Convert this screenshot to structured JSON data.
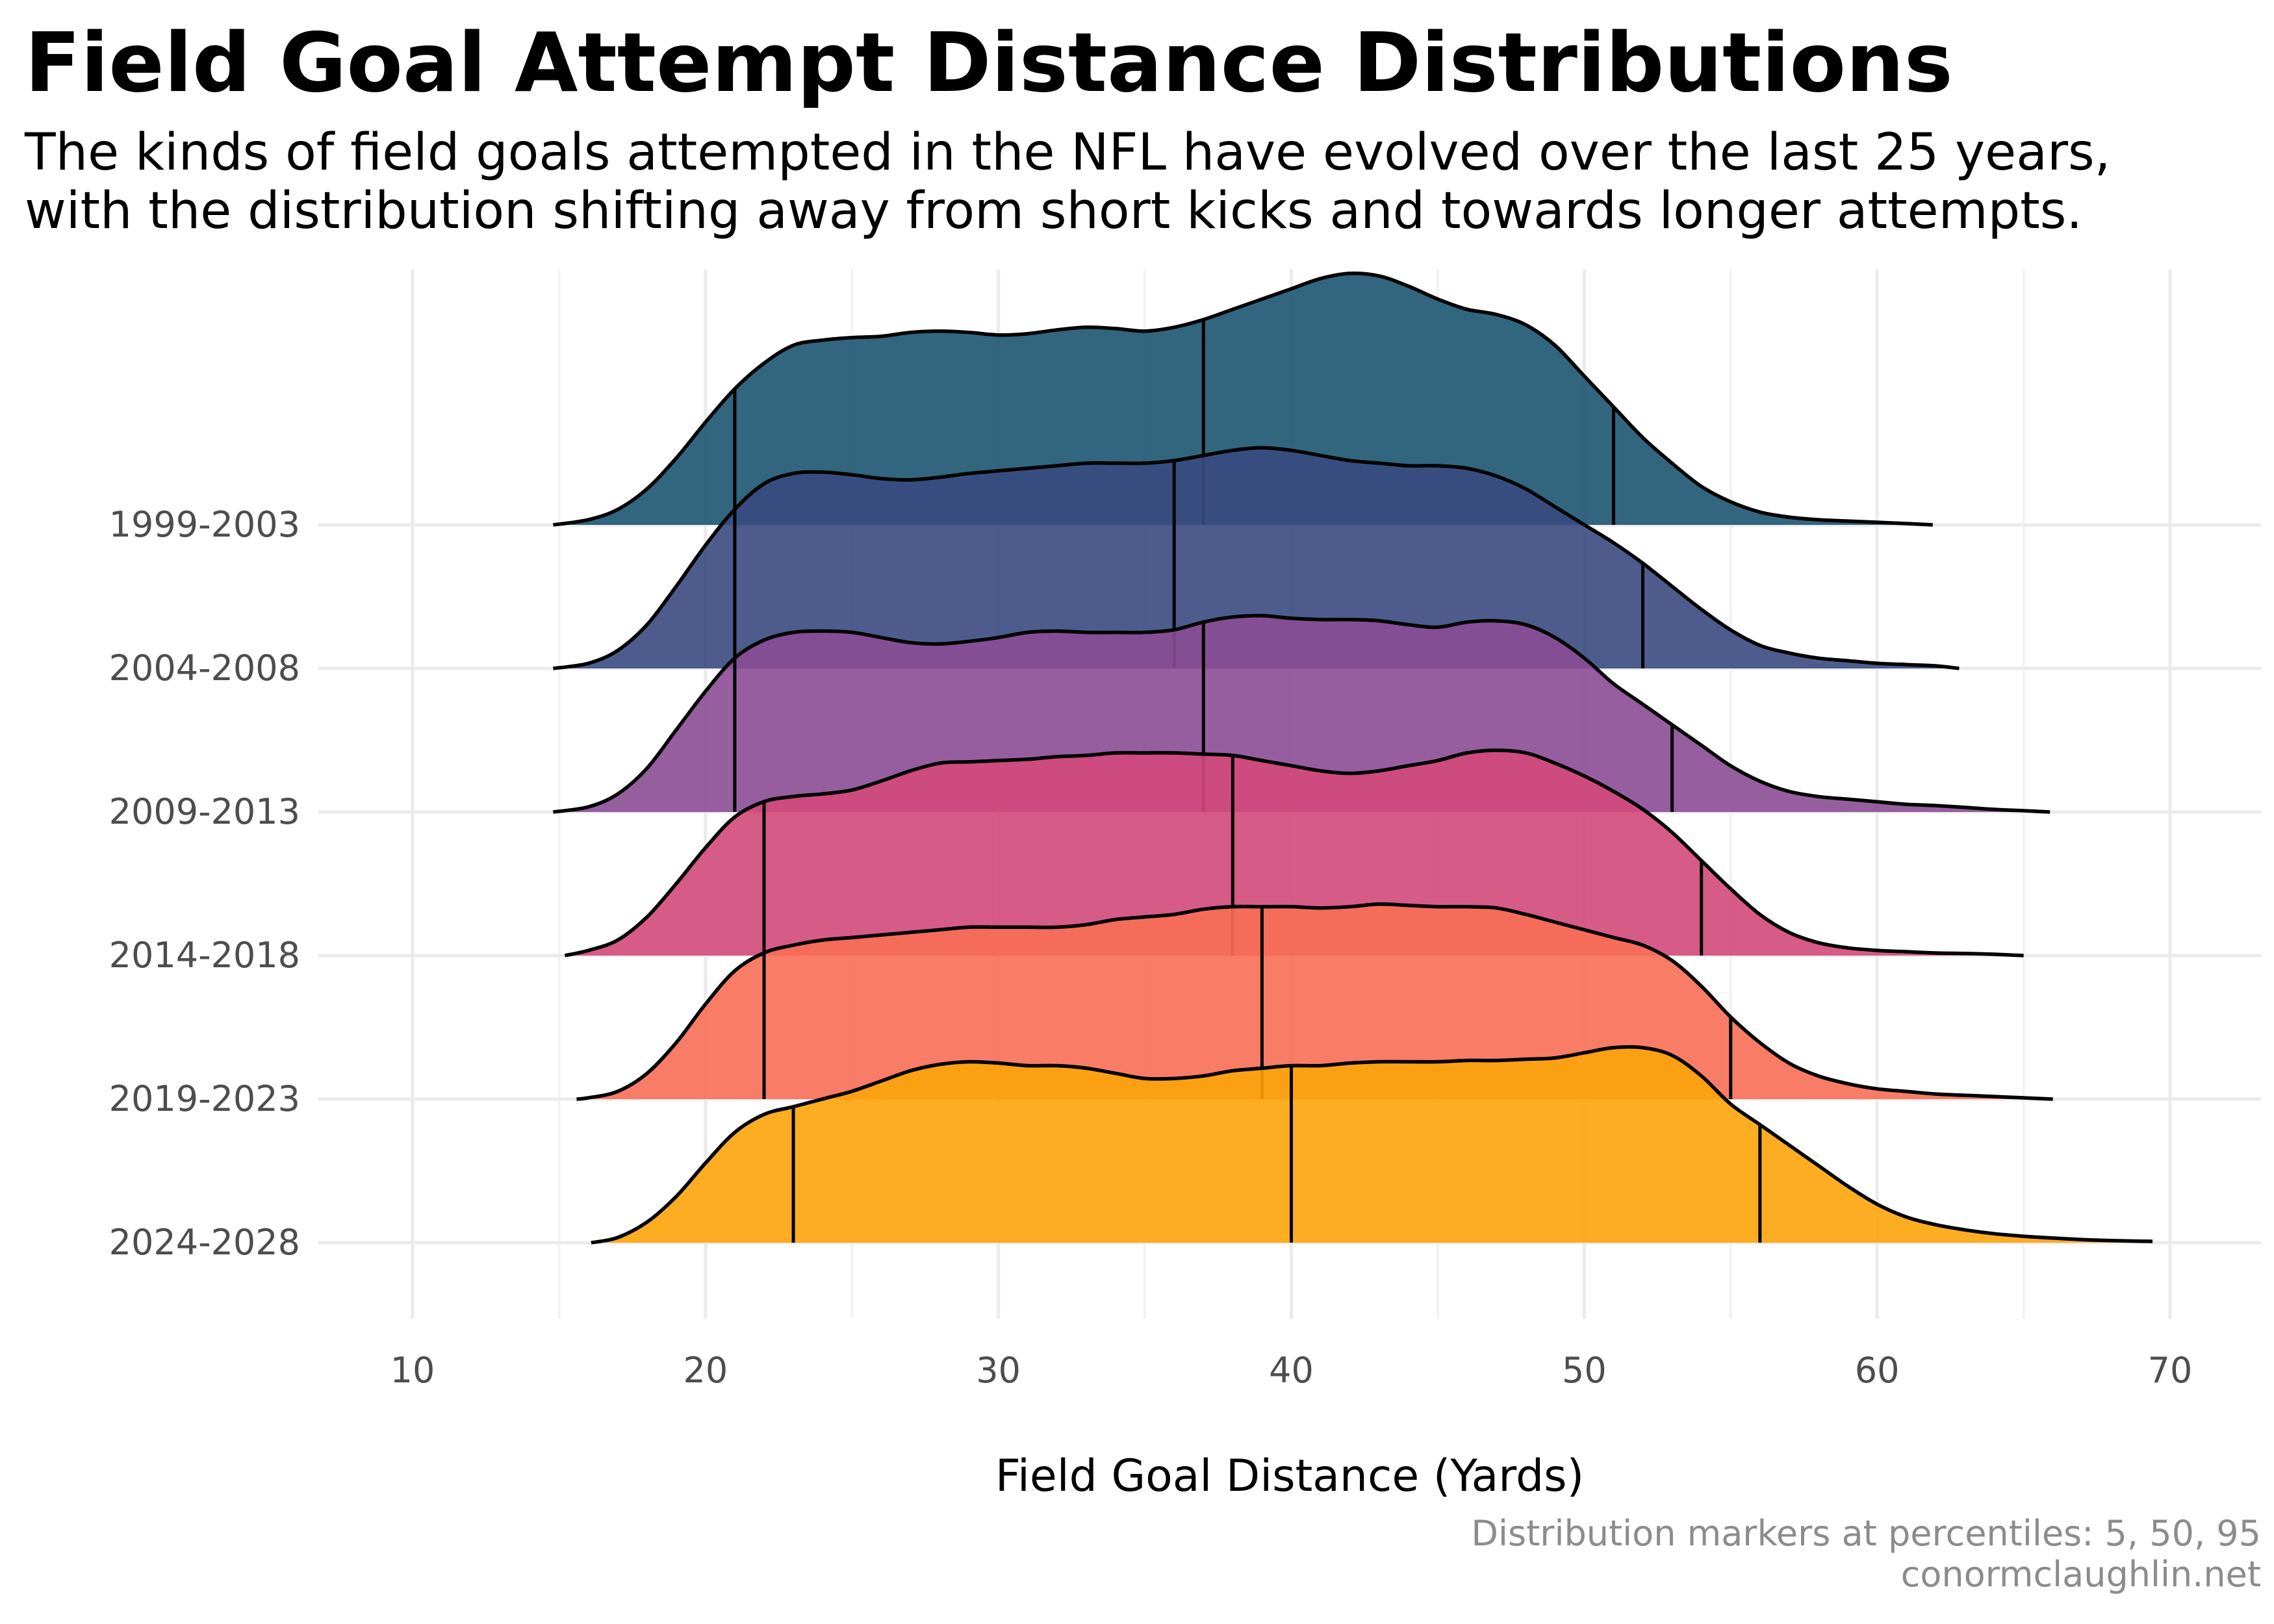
{
  "header": {
    "title": "Field Goal Attempt Distance Distributions",
    "subtitle_line1": "The kinds of field goals attempted in the NFL have evolved over the last 25 years,",
    "subtitle_line2": "with the distribution shifting away from short kicks and towards longer attempts."
  },
  "caption": {
    "line1": "Distribution markers at percentiles: 5, 50, 95",
    "line2": "conormclaughlin.net"
  },
  "chart_data": {
    "type": "ridgeline",
    "title": "Field Goal Attempt Distance Distributions",
    "xlabel": "Field Goal Distance (Yards)",
    "ylabel": "",
    "xlim": [
      8,
      74
    ],
    "x_ticks": [
      10,
      20,
      30,
      40,
      50,
      60,
      70
    ],
    "x_minor_ticks": [
      15,
      25,
      35,
      45,
      55,
      65
    ],
    "grid": true,
    "legend": "none",
    "quantile_percentiles": [
      5,
      50,
      95
    ],
    "series": [
      {
        "name": "1999-2003",
        "color": "#1b5570",
        "quantiles": [
          21,
          37,
          51
        ],
        "density": [
          [
            14.8,
            0
          ],
          [
            16,
            0.02
          ],
          [
            17,
            0.06
          ],
          [
            18,
            0.14
          ],
          [
            19,
            0.26
          ],
          [
            20,
            0.4
          ],
          [
            21,
            0.53
          ],
          [
            22,
            0.63
          ],
          [
            23,
            0.7
          ],
          [
            24,
            0.72
          ],
          [
            25,
            0.73
          ],
          [
            26,
            0.735
          ],
          [
            27,
            0.75
          ],
          [
            28,
            0.755
          ],
          [
            29,
            0.75
          ],
          [
            30,
            0.74
          ],
          [
            31,
            0.745
          ],
          [
            32,
            0.76
          ],
          [
            33,
            0.77
          ],
          [
            34,
            0.765
          ],
          [
            35,
            0.755
          ],
          [
            36,
            0.77
          ],
          [
            37,
            0.8
          ],
          [
            38,
            0.84
          ],
          [
            39,
            0.88
          ],
          [
            40,
            0.92
          ],
          [
            41,
            0.96
          ],
          [
            42,
            0.98
          ],
          [
            43,
            0.97
          ],
          [
            44,
            0.93
          ],
          [
            45,
            0.88
          ],
          [
            46,
            0.84
          ],
          [
            47,
            0.82
          ],
          [
            48,
            0.78
          ],
          [
            49,
            0.7
          ],
          [
            50,
            0.58
          ],
          [
            51,
            0.46
          ],
          [
            52,
            0.34
          ],
          [
            53,
            0.24
          ],
          [
            54,
            0.15
          ],
          [
            55,
            0.09
          ],
          [
            56,
            0.05
          ],
          [
            57,
            0.03
          ],
          [
            58,
            0.02
          ],
          [
            59,
            0.015
          ],
          [
            60,
            0.01
          ],
          [
            61,
            0.005
          ],
          [
            61.9,
            0
          ]
        ]
      },
      {
        "name": "2004-2008",
        "color": "#3a4a7f",
        "quantiles": [
          21,
          36,
          52
        ],
        "density": [
          [
            14.8,
            0
          ],
          [
            16,
            0.02
          ],
          [
            17,
            0.07
          ],
          [
            18,
            0.17
          ],
          [
            19,
            0.32
          ],
          [
            20,
            0.48
          ],
          [
            21,
            0.62
          ],
          [
            22,
            0.72
          ],
          [
            23,
            0.76
          ],
          [
            24,
            0.765
          ],
          [
            25,
            0.755
          ],
          [
            26,
            0.74
          ],
          [
            27,
            0.735
          ],
          [
            28,
            0.745
          ],
          [
            29,
            0.76
          ],
          [
            30,
            0.77
          ],
          [
            31,
            0.78
          ],
          [
            32,
            0.79
          ],
          [
            33,
            0.8
          ],
          [
            34,
            0.8
          ],
          [
            35,
            0.8
          ],
          [
            36,
            0.81
          ],
          [
            37,
            0.83
          ],
          [
            38,
            0.85
          ],
          [
            39,
            0.86
          ],
          [
            40,
            0.85
          ],
          [
            41,
            0.83
          ],
          [
            42,
            0.81
          ],
          [
            43,
            0.8
          ],
          [
            44,
            0.79
          ],
          [
            45,
            0.79
          ],
          [
            46,
            0.78
          ],
          [
            47,
            0.75
          ],
          [
            48,
            0.7
          ],
          [
            49,
            0.63
          ],
          [
            50,
            0.56
          ],
          [
            51,
            0.49
          ],
          [
            52,
            0.41
          ],
          [
            53,
            0.32
          ],
          [
            54,
            0.23
          ],
          [
            55,
            0.15
          ],
          [
            56,
            0.09
          ],
          [
            57,
            0.06
          ],
          [
            58,
            0.04
          ],
          [
            59,
            0.03
          ],
          [
            60,
            0.02
          ],
          [
            61,
            0.015
          ],
          [
            62,
            0.01
          ],
          [
            62.8,
            0
          ]
        ]
      },
      {
        "name": "2009-2013",
        "color": "#8b4d95",
        "quantiles": [
          21,
          37,
          53
        ],
        "density": [
          [
            14.8,
            0
          ],
          [
            16,
            0.02
          ],
          [
            17,
            0.07
          ],
          [
            18,
            0.17
          ],
          [
            19,
            0.32
          ],
          [
            20,
            0.47
          ],
          [
            21,
            0.6
          ],
          [
            22,
            0.67
          ],
          [
            23,
            0.7
          ],
          [
            24,
            0.705
          ],
          [
            25,
            0.7
          ],
          [
            26,
            0.68
          ],
          [
            27,
            0.66
          ],
          [
            28,
            0.655
          ],
          [
            29,
            0.665
          ],
          [
            30,
            0.68
          ],
          [
            31,
            0.7
          ],
          [
            32,
            0.705
          ],
          [
            33,
            0.7
          ],
          [
            34,
            0.7
          ],
          [
            35,
            0.7
          ],
          [
            36,
            0.71
          ],
          [
            37,
            0.74
          ],
          [
            38,
            0.76
          ],
          [
            39,
            0.765
          ],
          [
            40,
            0.755
          ],
          [
            41,
            0.75
          ],
          [
            42,
            0.75
          ],
          [
            43,
            0.745
          ],
          [
            44,
            0.73
          ],
          [
            45,
            0.72
          ],
          [
            46,
            0.74
          ],
          [
            47,
            0.745
          ],
          [
            48,
            0.73
          ],
          [
            49,
            0.68
          ],
          [
            50,
            0.6
          ],
          [
            51,
            0.5
          ],
          [
            52,
            0.42
          ],
          [
            53,
            0.34
          ],
          [
            54,
            0.26
          ],
          [
            55,
            0.18
          ],
          [
            56,
            0.12
          ],
          [
            57,
            0.08
          ],
          [
            58,
            0.06
          ],
          [
            59,
            0.05
          ],
          [
            60,
            0.04
          ],
          [
            61,
            0.03
          ],
          [
            62,
            0.025
          ],
          [
            63,
            0.018
          ],
          [
            64,
            0.01
          ],
          [
            65,
            0.005
          ],
          [
            65.9,
            0
          ]
        ]
      },
      {
        "name": "2014-2018",
        "color": "#d3497a",
        "quantiles": [
          22,
          38,
          54
        ],
        "density": [
          [
            15.2,
            0
          ],
          [
            16,
            0.02
          ],
          [
            17,
            0.06
          ],
          [
            18,
            0.15
          ],
          [
            19,
            0.28
          ],
          [
            20,
            0.42
          ],
          [
            21,
            0.54
          ],
          [
            22,
            0.6
          ],
          [
            23,
            0.62
          ],
          [
            24,
            0.63
          ],
          [
            25,
            0.645
          ],
          [
            26,
            0.68
          ],
          [
            27,
            0.72
          ],
          [
            28,
            0.75
          ],
          [
            29,
            0.755
          ],
          [
            30,
            0.76
          ],
          [
            31,
            0.765
          ],
          [
            32,
            0.775
          ],
          [
            33,
            0.78
          ],
          [
            34,
            0.79
          ],
          [
            35,
            0.79
          ],
          [
            36,
            0.79
          ],
          [
            37,
            0.785
          ],
          [
            38,
            0.78
          ],
          [
            39,
            0.76
          ],
          [
            40,
            0.74
          ],
          [
            41,
            0.72
          ],
          [
            42,
            0.71
          ],
          [
            43,
            0.72
          ],
          [
            44,
            0.74
          ],
          [
            45,
            0.76
          ],
          [
            46,
            0.79
          ],
          [
            47,
            0.8
          ],
          [
            48,
            0.79
          ],
          [
            49,
            0.75
          ],
          [
            50,
            0.7
          ],
          [
            51,
            0.64
          ],
          [
            52,
            0.57
          ],
          [
            53,
            0.48
          ],
          [
            54,
            0.37
          ],
          [
            55,
            0.26
          ],
          [
            56,
            0.16
          ],
          [
            57,
            0.09
          ],
          [
            58,
            0.05
          ],
          [
            59,
            0.03
          ],
          [
            60,
            0.02
          ],
          [
            61,
            0.015
          ],
          [
            62,
            0.01
          ],
          [
            63,
            0.008
          ],
          [
            64,
            0.005
          ],
          [
            65,
            0
          ]
        ]
      },
      {
        "name": "2019-2023",
        "color": "#f86e55",
        "quantiles": [
          22,
          39,
          55
        ],
        "density": [
          [
            15.6,
            0
          ],
          [
            16,
            0.005
          ],
          [
            17,
            0.03
          ],
          [
            18,
            0.1
          ],
          [
            19,
            0.22
          ],
          [
            20,
            0.37
          ],
          [
            21,
            0.5
          ],
          [
            22,
            0.57
          ],
          [
            23,
            0.6
          ],
          [
            24,
            0.62
          ],
          [
            25,
            0.63
          ],
          [
            26,
            0.64
          ],
          [
            27,
            0.65
          ],
          [
            28,
            0.66
          ],
          [
            29,
            0.67
          ],
          [
            30,
            0.67
          ],
          [
            31,
            0.67
          ],
          [
            32,
            0.67
          ],
          [
            33,
            0.68
          ],
          [
            34,
            0.7
          ],
          [
            35,
            0.71
          ],
          [
            36,
            0.72
          ],
          [
            37,
            0.74
          ],
          [
            38,
            0.75
          ],
          [
            39,
            0.75
          ],
          [
            40,
            0.75
          ],
          [
            41,
            0.745
          ],
          [
            42,
            0.75
          ],
          [
            43,
            0.76
          ],
          [
            44,
            0.755
          ],
          [
            45,
            0.75
          ],
          [
            46,
            0.75
          ],
          [
            47,
            0.745
          ],
          [
            48,
            0.72
          ],
          [
            49,
            0.69
          ],
          [
            50,
            0.66
          ],
          [
            51,
            0.63
          ],
          [
            52,
            0.6
          ],
          [
            53,
            0.54
          ],
          [
            54,
            0.44
          ],
          [
            55,
            0.32
          ],
          [
            56,
            0.22
          ],
          [
            57,
            0.14
          ],
          [
            58,
            0.09
          ],
          [
            59,
            0.06
          ],
          [
            60,
            0.04
          ],
          [
            61,
            0.03
          ],
          [
            62,
            0.02
          ],
          [
            63,
            0.015
          ],
          [
            64,
            0.01
          ],
          [
            65,
            0.005
          ],
          [
            66,
            0
          ]
        ]
      },
      {
        "name": "2024-2028",
        "color": "#fca40a",
        "quantiles": [
          23,
          40,
          56
        ],
        "density": [
          [
            16.1,
            0
          ],
          [
            17,
            0.02
          ],
          [
            18,
            0.08
          ],
          [
            19,
            0.18
          ],
          [
            20,
            0.31
          ],
          [
            21,
            0.43
          ],
          [
            22,
            0.5
          ],
          [
            23,
            0.53
          ],
          [
            24,
            0.56
          ],
          [
            25,
            0.59
          ],
          [
            26,
            0.63
          ],
          [
            27,
            0.67
          ],
          [
            28,
            0.695
          ],
          [
            29,
            0.705
          ],
          [
            30,
            0.7
          ],
          [
            31,
            0.69
          ],
          [
            32,
            0.69
          ],
          [
            33,
            0.68
          ],
          [
            34,
            0.66
          ],
          [
            35,
            0.64
          ],
          [
            36,
            0.64
          ],
          [
            37,
            0.65
          ],
          [
            38,
            0.67
          ],
          [
            39,
            0.68
          ],
          [
            40,
            0.69
          ],
          [
            41,
            0.69
          ],
          [
            42,
            0.7
          ],
          [
            43,
            0.705
          ],
          [
            44,
            0.705
          ],
          [
            45,
            0.705
          ],
          [
            46,
            0.71
          ],
          [
            47,
            0.71
          ],
          [
            48,
            0.715
          ],
          [
            49,
            0.72
          ],
          [
            50,
            0.74
          ],
          [
            51,
            0.76
          ],
          [
            52,
            0.76
          ],
          [
            53,
            0.73
          ],
          [
            54,
            0.65
          ],
          [
            55,
            0.54
          ],
          [
            56,
            0.46
          ],
          [
            57,
            0.38
          ],
          [
            58,
            0.3
          ],
          [
            59,
            0.22
          ],
          [
            60,
            0.15
          ],
          [
            61,
            0.1
          ],
          [
            62,
            0.07
          ],
          [
            63,
            0.05
          ],
          [
            64,
            0.035
          ],
          [
            65,
            0.025
          ],
          [
            66,
            0.018
          ],
          [
            67,
            0.012
          ],
          [
            68,
            0.008
          ],
          [
            69.4,
            0.005
          ]
        ]
      }
    ]
  }
}
